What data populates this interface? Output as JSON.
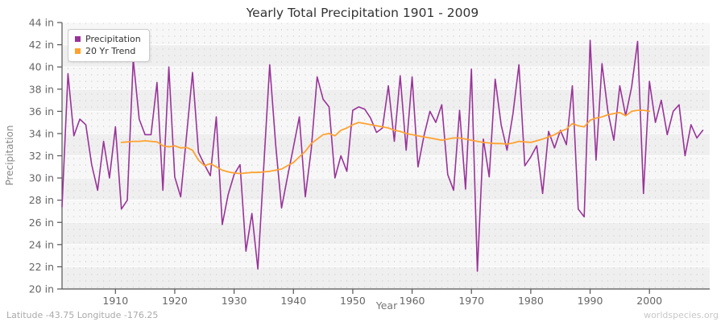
{
  "title": "Yearly Total Precipitation 1901 - 2009",
  "footer": {
    "left": "Latitude -43.75 Longitude -176.25",
    "right": "worldspecies.org"
  },
  "legend": {
    "items": [
      {
        "label": "Precipitation",
        "color": "#993399"
      },
      {
        "label": "20 Yr Trend",
        "color": "#FFA230"
      }
    ]
  },
  "chart_data": {
    "type": "line",
    "title": "Yearly Total Precipitation 1901 - 2009",
    "xlabel": "Year",
    "ylabel": "Precipitation",
    "xlim": [
      1901,
      2009
    ],
    "ylim": [
      20,
      44
    ],
    "ytick_step": 2,
    "ytick_suffix": " in",
    "xticks": [
      1910,
      1920,
      1930,
      1940,
      1950,
      1960,
      1970,
      1980,
      1990,
      2000
    ],
    "grid": "yearly dashed vertical lines, alternating 2-inch horizontal bands",
    "legend_position": "top-left",
    "series": [
      {
        "name": "Precipitation",
        "color": "#993399",
        "start_year": 1901,
        "values": [
          27.4,
          39.4,
          33.8,
          35.3,
          34.8,
          31.2,
          28.9,
          33.3,
          30.0,
          34.6,
          27.2,
          28.0,
          40.7,
          35.3,
          33.9,
          33.9,
          38.6,
          28.9,
          40.0,
          30.1,
          28.3,
          33.9,
          39.5,
          32.3,
          31.2,
          30.2,
          35.5,
          25.8,
          28.5,
          30.3,
          31.2,
          23.4,
          26.8,
          21.8,
          31.0,
          40.2,
          33.0,
          27.3,
          30.1,
          32.8,
          35.5,
          28.3,
          32.6,
          39.1,
          37.1,
          36.4,
          30.0,
          32.0,
          30.6,
          36.1,
          36.4,
          36.2,
          35.4,
          34.1,
          34.5,
          38.3,
          33.3,
          39.2,
          32.5,
          39.1,
          31.0,
          33.8,
          36.0,
          35.0,
          36.6,
          30.3,
          28.9,
          36.1,
          29.0,
          39.8,
          21.6,
          33.5,
          30.1,
          38.9,
          34.8,
          32.5,
          35.8,
          40.2,
          31.1,
          31.9,
          32.9,
          28.6,
          34.2,
          32.7,
          34.3,
          33.0,
          38.3,
          27.2,
          26.5,
          42.4,
          31.6,
          40.3,
          36.0,
          33.4,
          38.3,
          35.6,
          38.2,
          42.3,
          28.6,
          38.7,
          35.0,
          37.0,
          33.9,
          36.0,
          36.6,
          32.0,
          34.8,
          33.6,
          34.3
        ]
      },
      {
        "name": "20 Yr Trend",
        "color": "#FFA230",
        "start_year": 1911,
        "values": [
          33.2,
          33.25,
          33.3,
          33.3,
          33.35,
          33.3,
          33.25,
          32.9,
          32.8,
          32.9,
          32.7,
          32.75,
          32.5,
          31.6,
          31.1,
          31.3,
          31.0,
          30.7,
          30.55,
          30.45,
          30.4,
          30.45,
          30.5,
          30.5,
          30.55,
          30.6,
          30.7,
          30.8,
          31.1,
          31.4,
          31.9,
          32.4,
          33.1,
          33.5,
          33.9,
          34.0,
          33.8,
          34.3,
          34.5,
          34.8,
          35.0,
          34.9,
          34.8,
          34.7,
          34.6,
          34.5,
          34.3,
          34.2,
          34.0,
          33.9,
          33.8,
          33.7,
          33.6,
          33.5,
          33.4,
          33.5,
          33.6,
          33.6,
          33.5,
          33.4,
          33.3,
          33.2,
          33.15,
          33.1,
          33.1,
          33.05,
          33.15,
          33.3,
          33.25,
          33.2,
          33.35,
          33.5,
          33.7,
          33.9,
          34.2,
          34.4,
          34.9,
          34.7,
          34.6,
          35.2,
          35.4,
          35.5,
          35.7,
          35.8,
          35.9,
          35.6,
          36.0,
          36.1,
          36.1,
          36.0
        ]
      }
    ]
  }
}
